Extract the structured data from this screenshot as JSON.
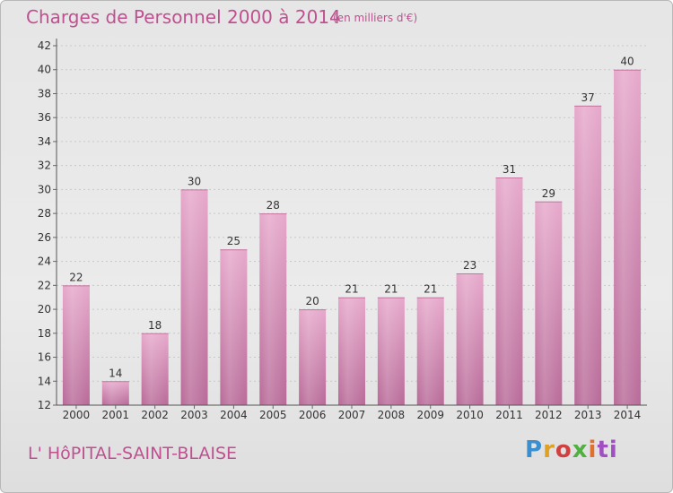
{
  "chart_data": {
    "type": "bar",
    "title": "Charges de Personnel 2000 à 2014",
    "subtitle": "(en milliers d'€)",
    "categories": [
      "2000",
      "2001",
      "2002",
      "2003",
      "2004",
      "2005",
      "2006",
      "2007",
      "2008",
      "2009",
      "2010",
      "2011",
      "2012",
      "2013",
      "2014"
    ],
    "values": [
      22,
      14,
      18,
      30,
      25,
      28,
      20,
      21,
      21,
      21,
      23,
      31,
      29,
      37,
      40
    ],
    "ylim": [
      12,
      42
    ],
    "yticks": [
      12,
      14,
      16,
      18,
      20,
      22,
      24,
      26,
      28,
      30,
      32,
      34,
      36,
      38,
      40,
      42
    ],
    "grid": true,
    "bar_color": "#d98ab4",
    "xlabel": "",
    "ylabel": ""
  },
  "footer": {
    "commune": "L' HôPITAL-SAINT-BLAISE",
    "logo_parts": [
      "P",
      "r",
      "o",
      "x",
      "i",
      "ti"
    ]
  }
}
